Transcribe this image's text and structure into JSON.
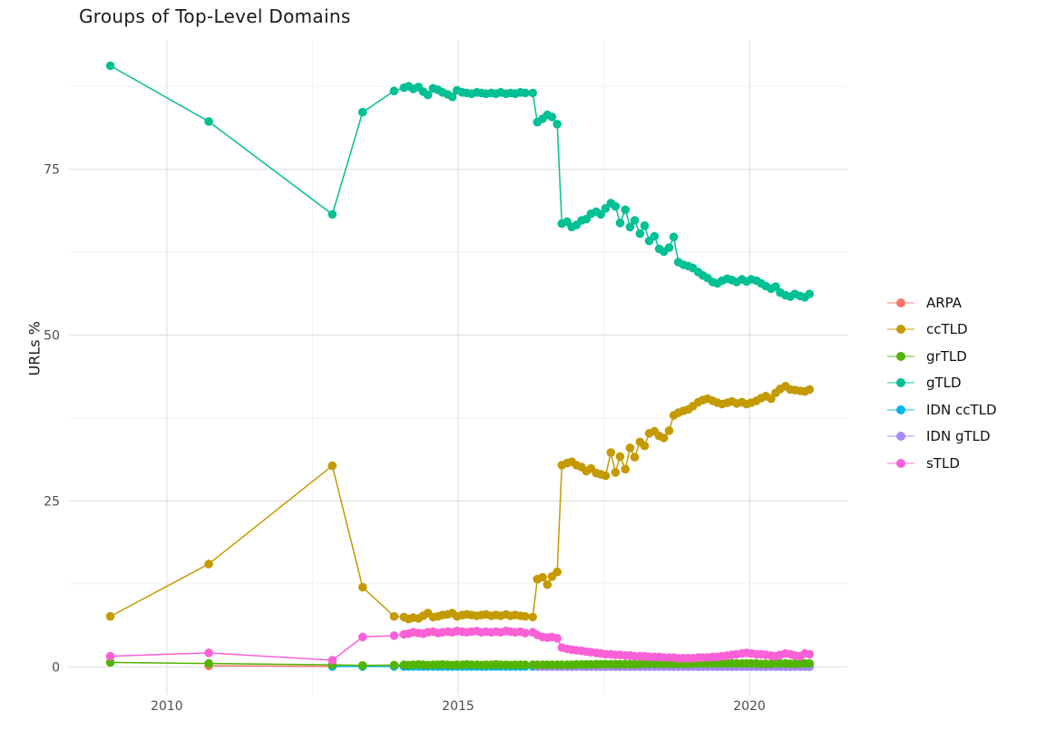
{
  "title": "Groups of Top-Level Domains",
  "y_axis_label": "URLs %",
  "legend": {
    "items": [
      {
        "label": "ARPA",
        "color": "#F8766D"
      },
      {
        "label": "ccTLD",
        "color": "#C49A00"
      },
      {
        "label": "grTLD",
        "color": "#53B400"
      },
      {
        "label": "gTLD",
        "color": "#00C094"
      },
      {
        "label": "IDN ccTLD",
        "color": "#00B6EB"
      },
      {
        "label": "IDN gTLD",
        "color": "#A58AFF"
      },
      {
        "label": "sTLD",
        "color": "#FB61D7"
      }
    ]
  },
  "chart_data": {
    "type": "line",
    "title": "Groups of Top-Level Domains",
    "xlabel": "",
    "ylabel": "URLs %",
    "xlim": [
      2008.32,
      2021.68
    ],
    "ylim": [
      -4.2,
      94.5
    ],
    "x_ticks": [
      2010,
      2015,
      2020
    ],
    "x_minor_ticks": [
      2012.5,
      2017.5
    ],
    "y_ticks": [
      0,
      25,
      50,
      75
    ],
    "y_minor_ticks": [
      12.5,
      37.5,
      62.5,
      87.5
    ],
    "grid": true,
    "legend_position": "right",
    "legend_order": [
      "ARPA",
      "ccTLD",
      "grTLD",
      "gTLD",
      "IDN ccTLD",
      "IDN gTLD",
      "sTLD"
    ],
    "x_common": {
      "early": [
        2009.03,
        2010.72,
        2012.84,
        2013.36,
        2013.9
      ],
      "early3": [
        2012.84,
        2013.36,
        2013.9
      ],
      "dense": [
        2014.07,
        2014.15,
        2014.23,
        2014.32,
        2014.4,
        2014.48,
        2014.57,
        2014.65,
        2014.73,
        2014.82,
        2014.9,
        2014.98,
        2015.07,
        2015.15,
        2015.23,
        2015.32,
        2015.4,
        2015.48,
        2015.57,
        2015.65,
        2015.73,
        2015.82,
        2015.9,
        2015.98,
        2016.07,
        2016.15,
        2016.28
      ],
      "mid": [
        2016.36,
        2016.45,
        2016.53,
        2016.61,
        2016.7
      ],
      "monthly": [
        2016.78,
        2016.87,
        2016.95,
        2017.03,
        2017.12,
        2017.2,
        2017.28,
        2017.37,
        2017.45,
        2017.53,
        2017.62,
        2017.7,
        2017.78,
        2017.87,
        2017.95,
        2018.03,
        2018.12,
        2018.2,
        2018.28,
        2018.37,
        2018.45,
        2018.53,
        2018.62,
        2018.7,
        2018.78,
        2018.87,
        2018.95,
        2019.03,
        2019.12,
        2019.2,
        2019.28,
        2019.37,
        2019.45,
        2019.53,
        2019.62,
        2019.7,
        2019.78,
        2019.87,
        2019.95,
        2020.03,
        2020.12,
        2020.2,
        2020.28,
        2020.37,
        2020.45,
        2020.53,
        2020.62,
        2020.7,
        2020.78,
        2020.87,
        2020.95,
        2021.03
      ]
    },
    "series": [
      {
        "name": "ARPA",
        "color": "#F8766D",
        "x": [
          2010.72,
          2012.84
        ],
        "y": [
          0.15,
          0.06
        ]
      },
      {
        "name": "IDN ccTLD",
        "color": "#00B6EB",
        "segments": [
          "early3",
          "dense",
          "mid",
          "monthly"
        ],
        "y_const": 0.05
      },
      {
        "name": "IDN gTLD",
        "color": "#A58AFF",
        "segments": [
          "mid",
          "monthly"
        ],
        "y_const": 0.02
      },
      {
        "name": "grTLD",
        "color": "#53B400",
        "segments": [
          "early",
          "dense",
          "mid",
          "monthly"
        ],
        "y": [
          0.65,
          0.5,
          0.3,
          0.2,
          0.25,
          0.3,
          0.25,
          0.3,
          0.35,
          0.3,
          0.25,
          0.3,
          0.3,
          0.35,
          0.3,
          0.25,
          0.3,
          0.3,
          0.35,
          0.3,
          0.3,
          0.25,
          0.3,
          0.3,
          0.35,
          0.3,
          0.3,
          0.25,
          0.3,
          0.3,
          0.3,
          0.3,
          0.3,
          0.3,
          0.3,
          0.3,
          0.3,
          0.3,
          0.3,
          0.3,
          0.35,
          0.35,
          0.35,
          0.35,
          0.4,
          0.4,
          0.4,
          0.4,
          0.4,
          0.4,
          0.4,
          0.4,
          0.4,
          0.4,
          0.45,
          0.45,
          0.45,
          0.45,
          0.45,
          0.45,
          0.45,
          0.45,
          0.45,
          0.45,
          0.5,
          0.5,
          0.5,
          0.5,
          0.5,
          0.5,
          0.5,
          0.5,
          0.5,
          0.5,
          0.5,
          0.5,
          0.5,
          0.5,
          0.45,
          0.45,
          0.45,
          0.5,
          0.5,
          0.5,
          0.45,
          0.45,
          0.5,
          0.5,
          0.5
        ]
      },
      {
        "name": "gTLD",
        "color": "#00C094",
        "segments": [
          "early",
          "dense",
          "mid",
          "monthly"
        ],
        "y": [
          90.6,
          82.2,
          68.2,
          83.6,
          86.8,
          87.3,
          87.5,
          87.1,
          87.4,
          86.7,
          86.2,
          87.2,
          87.0,
          86.6,
          86.3,
          85.9,
          86.9,
          86.6,
          86.5,
          86.4,
          86.6,
          86.5,
          86.4,
          86.5,
          86.4,
          86.6,
          86.4,
          86.5,
          86.4,
          86.6,
          86.5,
          86.5,
          82.1,
          82.6,
          83.2,
          82.9,
          81.8,
          66.8,
          67.1,
          66.3,
          66.6,
          67.3,
          67.5,
          68.3,
          68.6,
          68.2,
          69.1,
          69.9,
          69.4,
          66.9,
          68.9,
          66.3,
          67.3,
          65.3,
          66.5,
          64.2,
          64.9,
          63.0,
          62.6,
          63.2,
          64.8,
          61.0,
          60.6,
          60.4,
          60.1,
          59.5,
          59.0,
          58.6,
          58.0,
          57.8,
          58.2,
          58.5,
          58.3,
          58.0,
          58.4,
          58.1,
          58.4,
          58.2,
          57.8,
          57.4,
          57.0,
          57.3,
          56.4,
          56.0,
          55.8,
          56.2,
          55.9,
          55.7,
          56.2
        ]
      },
      {
        "name": "ccTLD",
        "color": "#C49A00",
        "segments": [
          "early",
          "dense",
          "mid",
          "monthly"
        ],
        "y": [
          7.6,
          15.5,
          30.3,
          12.0,
          7.6,
          7.5,
          7.2,
          7.4,
          7.3,
          7.7,
          8.1,
          7.5,
          7.6,
          7.8,
          7.9,
          8.1,
          7.6,
          7.8,
          7.9,
          7.8,
          7.7,
          7.8,
          7.9,
          7.7,
          7.8,
          7.7,
          7.9,
          7.7,
          7.8,
          7.7,
          7.6,
          7.5,
          13.2,
          13.5,
          12.4,
          13.6,
          14.3,
          30.4,
          30.7,
          30.9,
          30.4,
          30.1,
          29.5,
          29.9,
          29.2,
          29.0,
          28.8,
          32.3,
          29.3,
          31.7,
          29.8,
          33.0,
          31.6,
          33.9,
          33.3,
          35.2,
          35.5,
          34.8,
          34.5,
          35.6,
          37.9,
          38.3,
          38.6,
          38.8,
          39.3,
          39.9,
          40.2,
          40.4,
          40.1,
          39.8,
          39.6,
          39.8,
          40.0,
          39.7,
          39.9,
          39.6,
          39.8,
          40.1,
          40.5,
          40.8,
          40.4,
          41.3,
          41.9,
          42.3,
          41.8,
          41.7,
          41.6,
          41.5,
          41.8
        ]
      },
      {
        "name": "sTLD",
        "color": "#FB61D7",
        "segments": [
          "early",
          "dense",
          "mid",
          "monthly"
        ],
        "y": [
          1.6,
          2.1,
          1.0,
          4.5,
          4.7,
          4.9,
          5.0,
          5.2,
          5.1,
          5.0,
          5.2,
          5.3,
          5.1,
          5.2,
          5.3,
          5.2,
          5.4,
          5.3,
          5.2,
          5.3,
          5.4,
          5.2,
          5.3,
          5.2,
          5.3,
          5.2,
          5.4,
          5.3,
          5.2,
          5.3,
          5.1,
          5.2,
          4.8,
          4.5,
          4.4,
          4.5,
          4.3,
          2.9,
          2.7,
          2.6,
          2.5,
          2.4,
          2.3,
          2.2,
          2.1,
          2.0,
          1.9,
          1.9,
          1.8,
          1.8,
          1.7,
          1.7,
          1.6,
          1.6,
          1.6,
          1.5,
          1.5,
          1.5,
          1.4,
          1.4,
          1.4,
          1.3,
          1.3,
          1.3,
          1.3,
          1.4,
          1.4,
          1.4,
          1.5,
          1.5,
          1.6,
          1.7,
          1.8,
          1.9,
          2.0,
          2.1,
          2.0,
          1.9,
          1.9,
          1.8,
          1.7,
          1.6,
          1.8,
          2.0,
          1.9,
          1.7,
          1.6,
          2.0,
          1.9
        ]
      }
    ],
    "style": {
      "grid_major_color": "#e3e3e3",
      "grid_minor_color": "#f1f1f1",
      "tick_label_color": "#4d4d4d",
      "point_radius": 4.8,
      "line_width": 1.5
    }
  }
}
